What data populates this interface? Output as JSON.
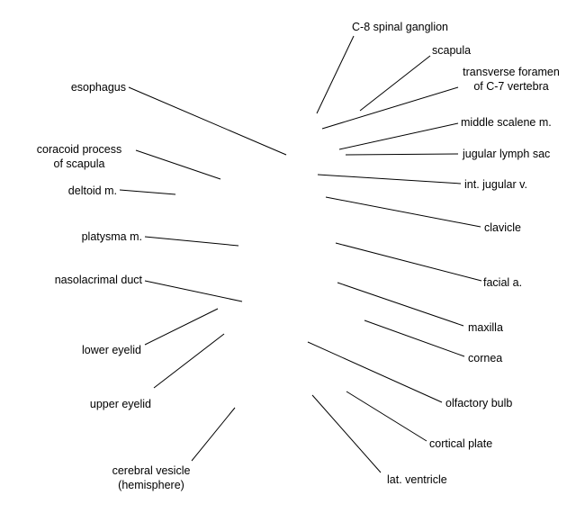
{
  "labels": {
    "c8_spinal_ganglion": "C-8 spinal ganglion",
    "scapula": "scapula",
    "transverse_foramen_1": "transverse foramen",
    "transverse_foramen_2": "of C-7 vertebra",
    "middle_scalene": "middle scalene m.",
    "jugular_lymph_sac": "jugular lymph sac",
    "int_jugular": "int. jugular v.",
    "clavicle": "clavicle",
    "facial_a": "facial a.",
    "maxilla": "maxilla",
    "cornea": "cornea",
    "olfactory_bulb": "olfactory bulb",
    "cortical_plate": "cortical plate",
    "lat_ventricle": "lat. ventricle",
    "esophagus": "esophagus",
    "coracoid_1": "coracoid process",
    "coracoid_2": "of scapula",
    "deltoid": "deltoid m.",
    "platysma": "platysma m.",
    "nasolacrimal": "nasolacrimal duct",
    "lower_eyelid": "lower eyelid",
    "upper_eyelid": "upper eyelid",
    "cerebral_1": "cerebral vesicle",
    "cerebral_2": "(hemisphere)"
  }
}
